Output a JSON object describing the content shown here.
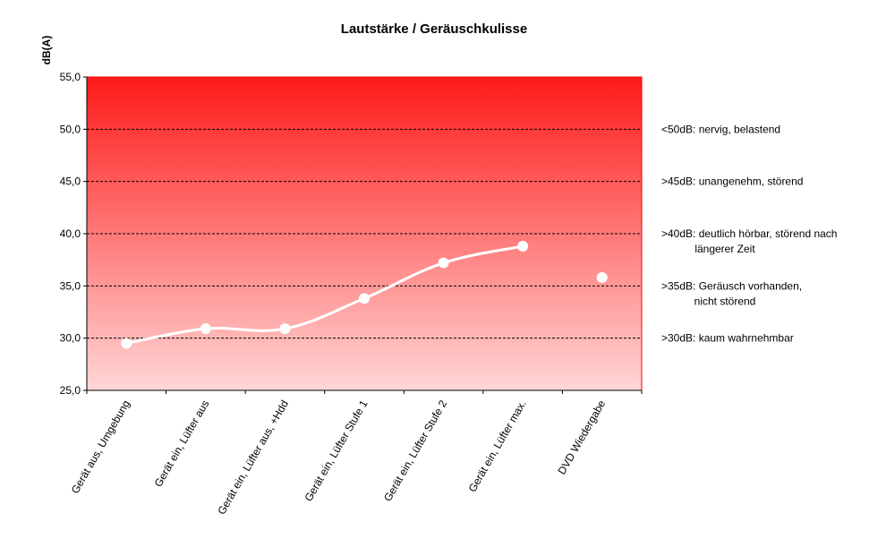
{
  "chart_data": {
    "type": "line",
    "title": "Lautstärke / Geräuschkulisse",
    "xlabel": "",
    "ylabel": "dB(A)",
    "ylim": [
      25,
      55
    ],
    "yticks": [
      "25,0",
      "30,0",
      "35,0",
      "40,0",
      "45,0",
      "50,0",
      "55,0"
    ],
    "grid": true,
    "gridlines": [
      30,
      35,
      40,
      45,
      50
    ],
    "categories": [
      "Gerät aus, Umgebung",
      "Gerät ein, Lüfter aus",
      "Gerät ein, Lüfter aus, +Hdd",
      "Gerät ein, Lüfter Stufe 1",
      "Gerät ein, Lüfter Stufe 2",
      "Gerät ein, Lüfter max.",
      "DVD Wiedergabe"
    ],
    "series": [
      {
        "values": [
          29.5,
          30.9,
          30.9,
          33.8,
          37.2,
          38.8,
          null
        ]
      },
      {
        "values": [
          null,
          null,
          null,
          null,
          null,
          null,
          35.8
        ]
      }
    ],
    "annotations": [
      {
        "value": 50,
        "lines": [
          "<50dB: nervig, belastend"
        ]
      },
      {
        "value": 45,
        "lines": [
          ">45dB: unangenehm, störend"
        ]
      },
      {
        "value": 40,
        "lines": [
          ">40dB: deutlich hörbar, störend nach",
          "längerer Zeit"
        ]
      },
      {
        "value": 35,
        "lines": [
          ">35dB: Geräusch vorhanden,",
          "nicht störend"
        ]
      },
      {
        "value": 30,
        "lines": [
          ">30dB: kaum wahrnehmbar"
        ]
      }
    ],
    "colors": {
      "background_top": "#ff1a1a",
      "background_bottom": "#ffd6d6",
      "border": "#ff0000",
      "line": "#ffffff",
      "marker": "#ffffff",
      "grid": "#000000"
    }
  }
}
